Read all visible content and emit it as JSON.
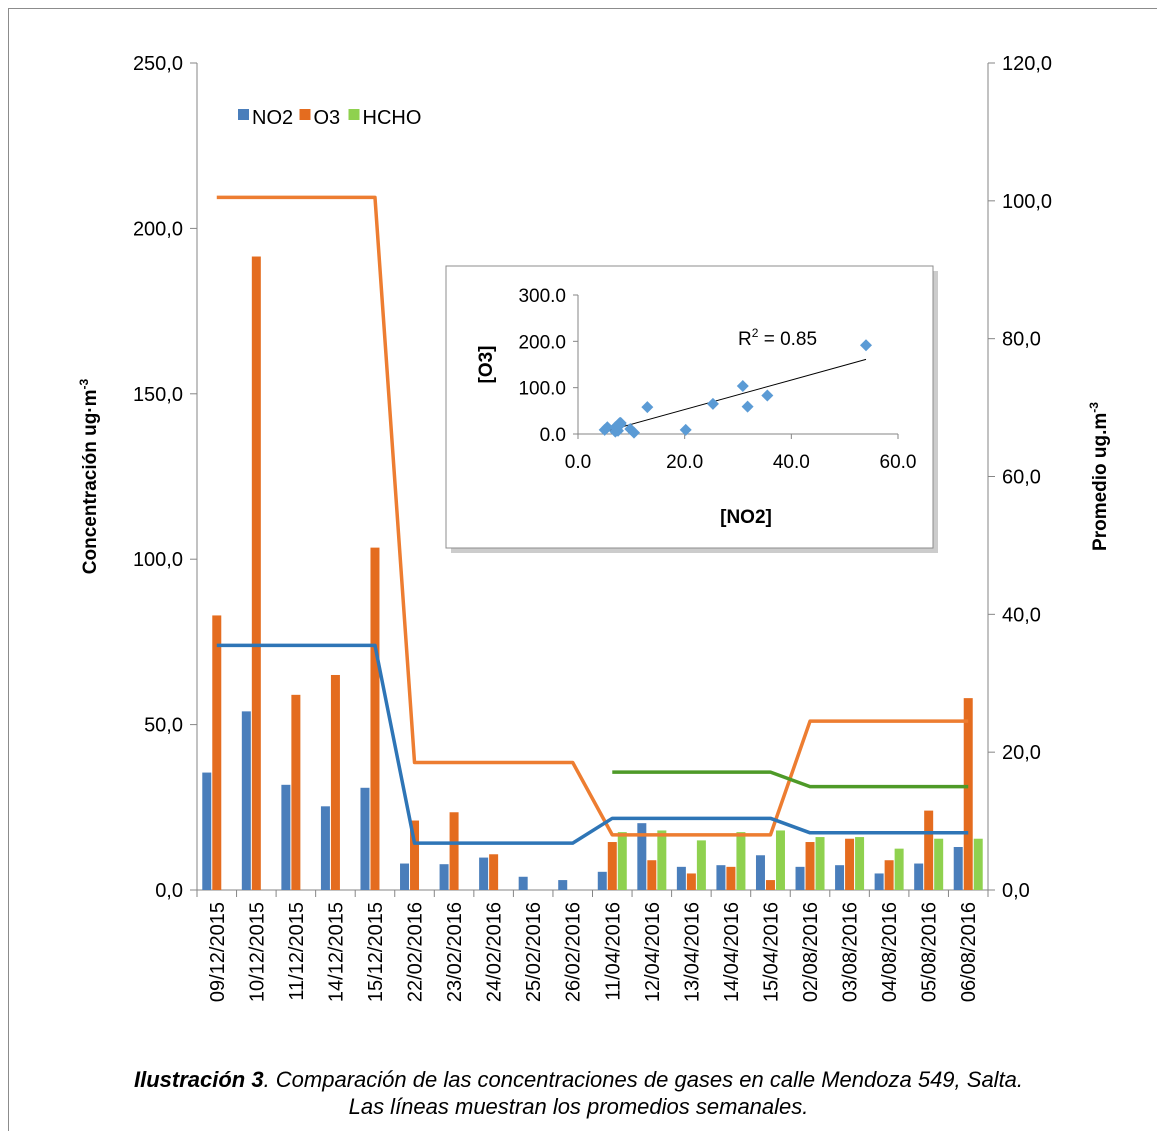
{
  "chart_data": [
    {
      "type": "bar",
      "ylabel": "Concentración ug·m",
      "ylabel_sup": "-3",
      "y2label": "Promedio ug.m",
      "y2label_sup": "-3",
      "ylim": [
        0,
        250
      ],
      "y_ticks": [
        "0,0",
        "50,0",
        "100,0",
        "150,0",
        "200,0",
        "250,0"
      ],
      "y2lim": [
        0,
        120
      ],
      "y2_ticks": [
        "0,0",
        "20,0",
        "40,0",
        "60,0",
        "80,0",
        "100,0",
        "120,0"
      ],
      "legend_position": "top-left",
      "categories": [
        "09/12/2015",
        "10/12/2015",
        "11/12/2015",
        "14/12/2015",
        "15/12/2015",
        "22/02/2016",
        "23/02/2016",
        "24/02/2016",
        "25/02/2016",
        "26/02/2016",
        "11/04/2016",
        "12/04/2016",
        "13/04/2016",
        "14/04/2016",
        "15/04/2016",
        "02/08/2016",
        "03/08/2016",
        "04/08/2016",
        "05/08/2016",
        "06/08/2016"
      ],
      "series": [
        {
          "name": "NO2",
          "color": "#4a7ebb",
          "values": [
            35.5,
            54.0,
            31.8,
            25.3,
            30.9,
            8.0,
            7.8,
            9.8,
            4.0,
            3.0,
            5.5,
            20.2,
            7.0,
            7.5,
            10.5,
            7.0,
            7.5,
            5.0,
            8.0,
            13.0
          ]
        },
        {
          "name": "O3",
          "color": "#e46c1f",
          "values": [
            83.0,
            191.5,
            59.0,
            65.0,
            103.5,
            21.0,
            23.5,
            10.8,
            0,
            0,
            14.5,
            9.0,
            5.0,
            7.0,
            3.0,
            14.5,
            15.5,
            9.0,
            24.0,
            58.0
          ]
        },
        {
          "name": "HCHO",
          "color": "#8fd14f",
          "values": [
            null,
            null,
            null,
            null,
            null,
            null,
            null,
            null,
            null,
            null,
            17.5,
            18.0,
            15.0,
            17.5,
            18.0,
            16.0,
            16.0,
            12.5,
            15.5,
            15.5
          ]
        }
      ],
      "weekly_averages": [
        {
          "series": "O3",
          "color": "#ed7d31",
          "values": [
            100.5,
            100.5,
            100.5,
            100.5,
            100.5,
            18.5,
            18.5,
            18.5,
            18.5,
            18.5,
            8.0,
            8.0,
            8.0,
            8.0,
            8.0,
            24.5,
            24.5,
            24.5,
            24.5,
            24.5
          ]
        },
        {
          "series": "NO2",
          "color": "#2e75b6",
          "values": [
            35.5,
            35.5,
            35.5,
            35.5,
            35.5,
            6.8,
            6.8,
            6.8,
            6.8,
            6.8,
            10.4,
            10.4,
            10.4,
            10.4,
            10.4,
            8.3,
            8.3,
            8.3,
            8.3,
            8.3
          ]
        },
        {
          "series": "HCHO",
          "color": "#4e9a28",
          "values": [
            null,
            null,
            null,
            null,
            null,
            null,
            null,
            null,
            null,
            null,
            17.1,
            17.1,
            17.1,
            17.1,
            17.1,
            15.0,
            15.0,
            15.0,
            15.0,
            15.0
          ]
        }
      ]
    },
    {
      "type": "scatter",
      "xlabel": "[NO2]",
      "ylabel": "[O3]",
      "xlim": [
        0,
        60
      ],
      "ylim": [
        0,
        300
      ],
      "x_ticks": [
        "0.0",
        "20.0",
        "40.0",
        "60.0"
      ],
      "y_ticks": [
        "0.0",
        "100.0",
        "200.0",
        "300.0"
      ],
      "annotation": "R",
      "annotation_sup": "2",
      "annotation_rest": " = 0.85",
      "point_color": "#5b9bd5",
      "x": [
        35.5,
        54.0,
        31.8,
        25.3,
        30.9,
        8.0,
        7.8,
        9.8,
        5.5,
        20.2,
        7.0,
        7.5,
        10.5,
        7.0,
        5.0,
        8.0,
        13.0
      ],
      "y": [
        83.0,
        191.5,
        59.0,
        65.0,
        103.5,
        21.0,
        23.5,
        10.8,
        14.5,
        9.0,
        5.0,
        7.0,
        3.0,
        14.5,
        9.0,
        24.0,
        58.0
      ],
      "trendline": {
        "x": [
          5,
          54
        ],
        "y": [
          5,
          161
        ]
      }
    }
  ],
  "caption": {
    "label": "Ilustración 3",
    "text": ". Comparación de las concentraciones de gases en calle Mendoza 549, Salta.",
    "line2": "Las líneas muestran los promedios semanales."
  }
}
